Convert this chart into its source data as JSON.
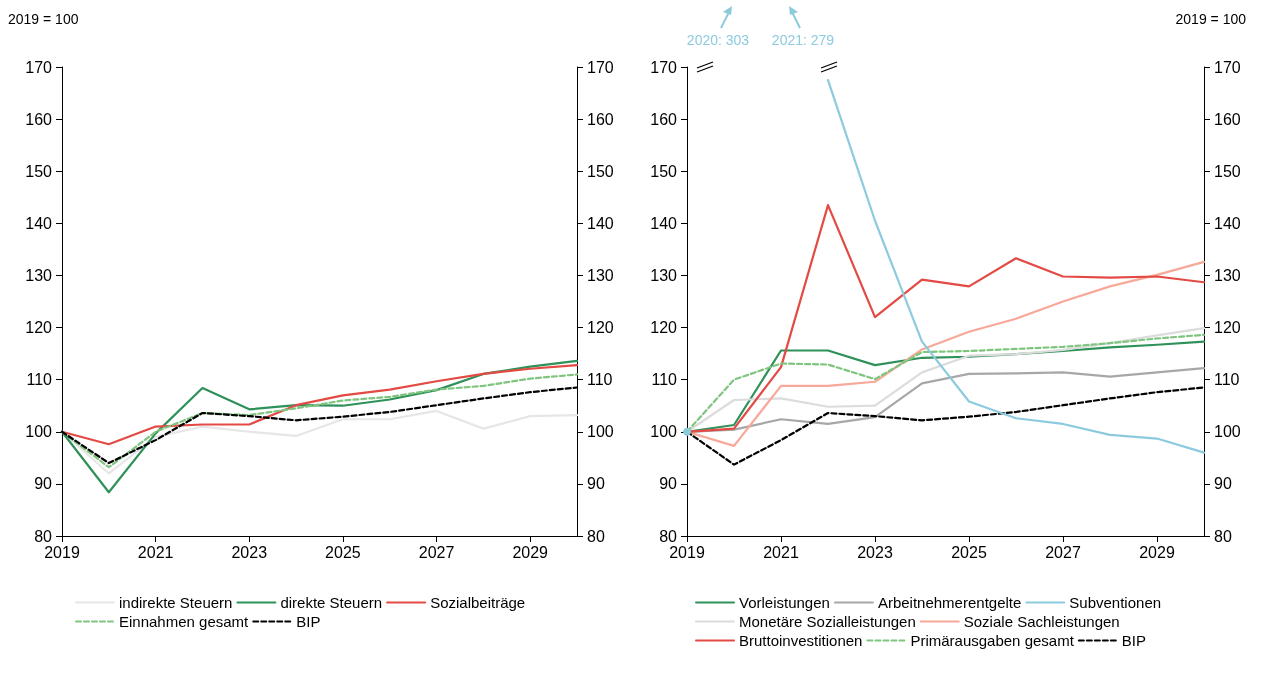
{
  "chart_data": [
    {
      "type": "line",
      "annotations": [
        "2019 = 100"
      ],
      "x": [
        2019,
        2020,
        2021,
        2022,
        2023,
        2024,
        2025,
        2026,
        2027,
        2028,
        2029,
        2030
      ],
      "xlim": [
        2019,
        2030
      ],
      "xticks": [
        2019,
        2021,
        2023,
        2025,
        2027,
        2029
      ],
      "ylim": [
        80,
        170
      ],
      "yticks": [
        80,
        90,
        100,
        110,
        120,
        130,
        140,
        150,
        160,
        170
      ],
      "y2lim": [
        80,
        170
      ],
      "y2ticks": [
        80,
        90,
        100,
        110,
        120,
        130,
        140,
        150,
        160,
        170
      ],
      "grid": false,
      "legend": "bottom",
      "marker": "none",
      "series": [
        {
          "name": "indirekte Steuern",
          "color": "#e6e6e6",
          "line_style": "solid",
          "values": [
            100,
            92.0,
            99.0,
            101.0,
            100.0,
            99.2,
            102.4,
            102.4,
            104.0,
            100.6,
            103.0,
            103.2
          ]
        },
        {
          "name": "direkte Steuern",
          "color": "#2e9159",
          "line_style": "solid",
          "values": [
            100,
            88.4,
            99.7,
            108.4,
            104.3,
            105.1,
            105.0,
            106.2,
            108.0,
            111.1,
            112.5,
            113.6
          ]
        },
        {
          "name": "Sozialbeiträge",
          "color": "#e34a44",
          "line_style": "solid",
          "values": [
            100,
            97.6,
            101.0,
            101.4,
            101.4,
            105.1,
            107.0,
            108.1,
            109.7,
            111.1,
            112.1,
            112.8
          ]
        },
        {
          "name": "Einnahmen gesamt",
          "color": "#7fc47f",
          "line_style": "dashed",
          "values": [
            100,
            93.2,
            100.0,
            103.6,
            103.2,
            104.5,
            106.0,
            106.7,
            108.1,
            108.8,
            110.2,
            111.0
          ]
        },
        {
          "name": "BIP",
          "color": "#000000",
          "line_style": "dashed",
          "values": [
            100,
            94.0,
            98.4,
            103.6,
            103.0,
            102.2,
            102.9,
            103.8,
            105.1,
            106.4,
            107.6,
            108.5
          ]
        }
      ]
    },
    {
      "type": "line",
      "annotations": [
        "2019 = 100",
        "2020: 303",
        "2021: 279"
      ],
      "x": [
        2019,
        2020,
        2021,
        2022,
        2023,
        2024,
        2025,
        2026,
        2027,
        2028,
        2029,
        2030
      ],
      "xlim": [
        2019,
        2030
      ],
      "xticks": [
        2019,
        2021,
        2023,
        2025,
        2027,
        2029
      ],
      "ylim": [
        80,
        170
      ],
      "yticks": [
        80,
        90,
        100,
        110,
        120,
        130,
        140,
        150,
        160,
        170
      ],
      "y2lim": [
        80,
        170
      ],
      "y2ticks": [
        80,
        90,
        100,
        110,
        120,
        130,
        140,
        150,
        160,
        170
      ],
      "grid": false,
      "legend": "bottom",
      "marker": "none",
      "series": [
        {
          "name": "Vorleistungen",
          "color": "#2e9159",
          "line_style": "solid",
          "values": [
            100,
            101.3,
            115.6,
            115.6,
            112.8,
            114.2,
            114.4,
            114.9,
            115.5,
            116.2,
            116.7,
            117.3
          ]
        },
        {
          "name": "Arbeitnehmerentgelte",
          "color": "#a5a8a6",
          "line_style": "solid",
          "values": [
            100,
            100.4,
            102.4,
            101.5,
            102.8,
            109.3,
            111.1,
            111.2,
            111.4,
            110.6,
            111.4,
            112.2
          ]
        },
        {
          "name": "Subventionen",
          "color": "#8ccbdd",
          "line_style": "solid",
          "values": [
            100,
            null,
            null,
            167.5,
            140.5,
            117.3,
            105.8,
            102.6,
            101.5,
            99.4,
            98.7,
            96.0
          ]
        },
        {
          "name": "Monetäre Sozialleistungen",
          "color": "#dcdcdc",
          "line_style": "solid",
          "values": [
            100,
            106.1,
            106.4,
            104.8,
            105.0,
            111.4,
            114.6,
            114.9,
            115.7,
            117.0,
            118.5,
            119.9
          ]
        },
        {
          "name": "Soziale Sachleistungen",
          "color": "#f7a899",
          "line_style": "solid",
          "values": [
            100,
            97.3,
            108.8,
            108.8,
            109.6,
            115.8,
            119.2,
            121.7,
            125.0,
            127.9,
            130.1,
            132.6
          ]
        },
        {
          "name": "Bruttoinvestitionen",
          "color": "#e34a44",
          "line_style": "solid",
          "values": [
            100,
            100.6,
            112.4,
            143.5,
            122.0,
            129.2,
            127.9,
            133.3,
            129.8,
            129.6,
            129.8,
            128.7
          ]
        },
        {
          "name": "Primärausgaben gesamt",
          "color": "#7fc47f",
          "line_style": "dashed",
          "values": [
            100,
            110.0,
            113.1,
            112.9,
            110.1,
            115.3,
            115.5,
            115.9,
            116.3,
            117.0,
            117.9,
            118.6
          ]
        },
        {
          "name": "BIP",
          "color": "#000000",
          "line_style": "dashed",
          "values": [
            100,
            93.7,
            98.4,
            103.6,
            103.0,
            102.2,
            102.9,
            103.8,
            105.1,
            106.4,
            107.6,
            108.5
          ]
        }
      ]
    }
  ]
}
